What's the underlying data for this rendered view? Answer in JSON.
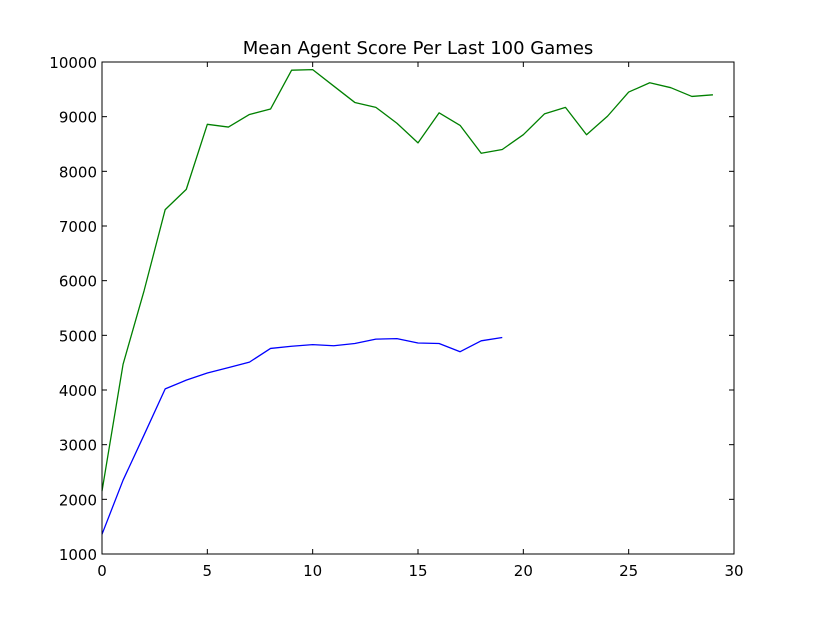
{
  "chart_data": {
    "type": "line",
    "title": "Mean Agent Score Per Last 100 Games",
    "xlabel": "",
    "ylabel": "",
    "xlim": [
      0,
      30
    ],
    "ylim": [
      1000,
      10000
    ],
    "xticks": [
      "0",
      "5",
      "10",
      "15",
      "20",
      "25",
      "30"
    ],
    "yticks": [
      "1000",
      "2000",
      "3000",
      "4000",
      "5000",
      "6000",
      "7000",
      "8000",
      "9000",
      "10000"
    ],
    "grid": false,
    "legend": "none",
    "series": [
      {
        "color": "#0000ff",
        "x": [
          0,
          1,
          2,
          3,
          4,
          5,
          6,
          7,
          8,
          9,
          10,
          11,
          12,
          13,
          14,
          15,
          16,
          17,
          18,
          19
        ],
        "values": [
          1360,
          2350,
          3180,
          4020,
          4180,
          4310,
          4410,
          4510,
          4760,
          4800,
          4830,
          4810,
          4850,
          4930,
          4940,
          4860,
          4850,
          4700,
          4900,
          4960
        ]
      },
      {
        "color": "#008000",
        "x": [
          0,
          1,
          2,
          3,
          4,
          5,
          6,
          7,
          8,
          9,
          10,
          11,
          12,
          13,
          14,
          15,
          16,
          17,
          18,
          19,
          20,
          21,
          22,
          23,
          24,
          25,
          26,
          27,
          28,
          29
        ],
        "values": [
          2150,
          4470,
          5820,
          7300,
          7670,
          8860,
          8810,
          9040,
          9140,
          9850,
          9860,
          9560,
          9260,
          9170,
          8880,
          8520,
          9070,
          8840,
          8330,
          8400,
          8670,
          9050,
          9170,
          8670,
          9010,
          9450,
          9620,
          9530,
          9370,
          9400
        ]
      }
    ]
  }
}
